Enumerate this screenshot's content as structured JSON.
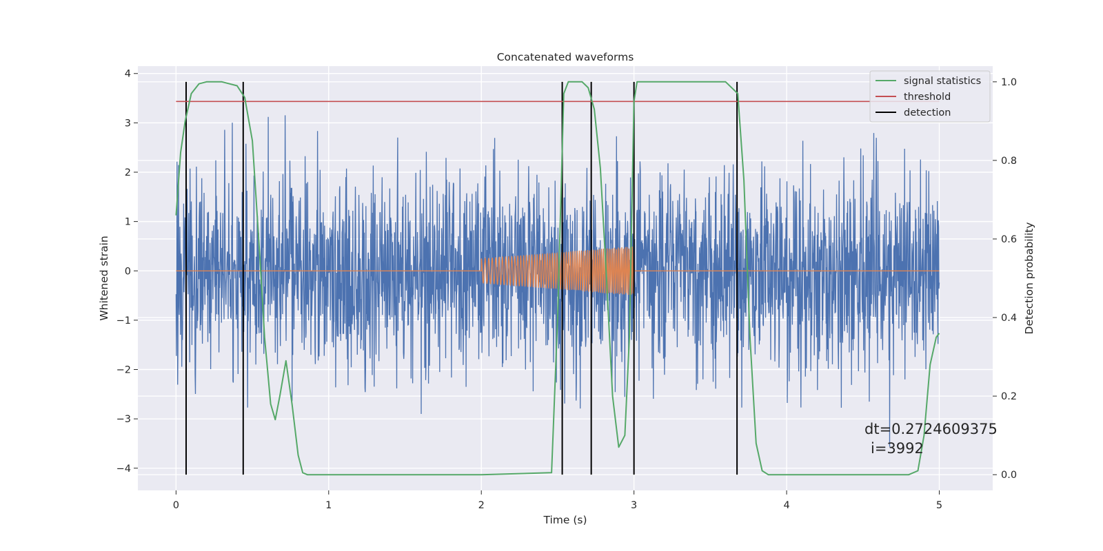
{
  "chart_data": {
    "type": "line",
    "title": "Concatenated waveforms",
    "xlabel": "Time (s)",
    "ylabel": "Whitened strain",
    "y2label": "Detection probability",
    "xlim": [
      -0.25,
      5.35
    ],
    "ylim": [
      -4.45,
      4.15
    ],
    "y2lim": [
      -0.04,
      1.04
    ],
    "xticks": [
      0,
      1,
      2,
      3,
      4,
      5
    ],
    "yticks": [
      -4,
      -3,
      -2,
      -1,
      0,
      1,
      2,
      3,
      4
    ],
    "y2ticks": [
      0.0,
      0.2,
      0.4,
      0.6,
      0.8,
      1.0
    ],
    "xtick_labels": [
      "0",
      "1",
      "2",
      "3",
      "4",
      "5"
    ],
    "ytick_labels": [
      "−4",
      "−3",
      "−2",
      "−1",
      "0",
      "1",
      "2",
      "3",
      "4"
    ],
    "y2tick_labels": [
      "0.0",
      "0.2",
      "0.4",
      "0.6",
      "0.8",
      "1.0"
    ],
    "grid": true,
    "legend_position": "top-right",
    "annotation": [
      "dt=0.2724609375",
      "i=3992"
    ],
    "noise": {
      "x_range": [
        0,
        5
      ],
      "typical_amplitude": 1.0,
      "peak_amplitude": 3.8,
      "color": "#4c72b0"
    },
    "injected_waveform": {
      "x_range": [
        2.0,
        3.0
      ],
      "start_amplitude": 0.25,
      "end_amplitude": 0.5,
      "baseline": 0,
      "color": "#dd8452"
    },
    "series": [
      {
        "name": "signal statistics",
        "axis": "right",
        "color": "#55a868",
        "x": [
          0,
          0.03,
          0.06,
          0.1,
          0.15,
          0.2,
          0.3,
          0.4,
          0.45,
          0.5,
          0.55,
          0.58,
          0.62,
          0.65,
          0.68,
          0.72,
          0.76,
          0.8,
          0.83,
          0.86,
          1.0,
          2.0,
          2.46,
          2.5,
          2.54,
          2.57,
          2.6,
          2.66,
          2.7,
          2.74,
          2.78,
          2.82,
          2.86,
          2.9,
          2.94,
          2.97,
          3.0,
          3.02,
          3.05,
          3.1,
          3.6,
          3.68,
          3.72,
          3.76,
          3.8,
          3.84,
          3.88,
          4.0,
          4.8,
          4.86,
          4.9,
          4.94,
          4.98,
          5.0
        ],
        "y": [
          0.66,
          0.82,
          0.9,
          0.97,
          0.995,
          1.0,
          1.0,
          0.99,
          0.96,
          0.85,
          0.55,
          0.35,
          0.18,
          0.14,
          0.2,
          0.29,
          0.18,
          0.05,
          0.005,
          0.0,
          0.0,
          0.0,
          0.005,
          0.4,
          0.97,
          1.0,
          1.0,
          1.0,
          0.985,
          0.93,
          0.78,
          0.5,
          0.2,
          0.07,
          0.1,
          0.35,
          0.95,
          1.0,
          1.0,
          1.0,
          1.0,
          0.97,
          0.75,
          0.35,
          0.08,
          0.01,
          0.0,
          0.0,
          0.0,
          0.01,
          0.1,
          0.28,
          0.35,
          0.36
        ]
      },
      {
        "name": "threshold",
        "axis": "right",
        "color": "#c44e52",
        "x": [
          0,
          5
        ],
        "y": [
          0.95,
          0.95
        ]
      },
      {
        "name": "detection",
        "axis": "right",
        "color": "#000000",
        "x": [
          0.066,
          0.44,
          2.53,
          2.72,
          3.0,
          3.675
        ],
        "y_range": [
          0.0,
          1.0
        ]
      }
    ]
  }
}
